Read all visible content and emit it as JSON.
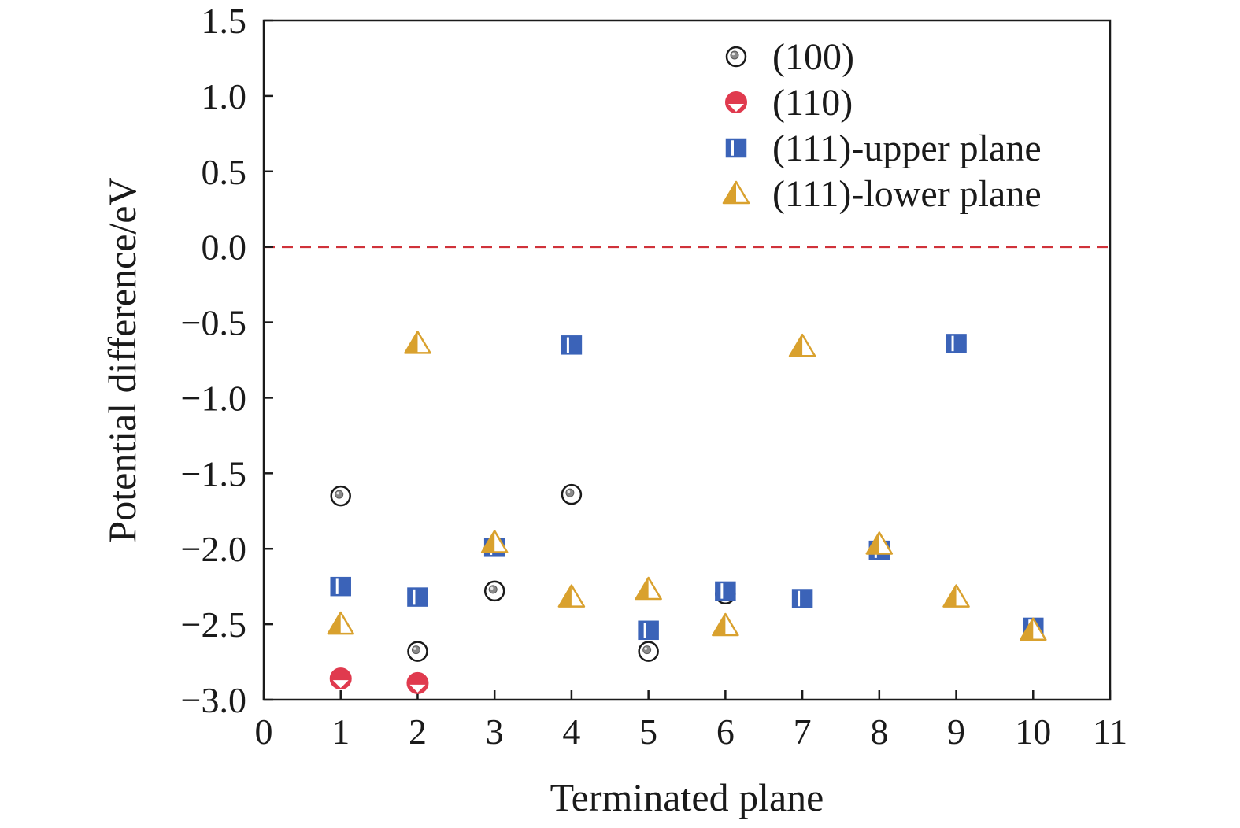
{
  "chart_data": {
    "type": "scatter",
    "xlabel": "Terminated plane",
    "ylabel": "Potential difference/eV",
    "xlim": [
      0,
      11
    ],
    "ylim": [
      -3.0,
      1.5
    ],
    "x_ticks": [
      "0",
      "1",
      "2",
      "3",
      "4",
      "5",
      "6",
      "7",
      "8",
      "9",
      "10",
      "11"
    ],
    "y_ticks": [
      "1.5",
      "1.0",
      "0.5",
      "0.0",
      "−0.5",
      "−1.0",
      "−1.5",
      "−2.0",
      "−2.5",
      "−3.0"
    ],
    "reference_line": {
      "y": 0.0,
      "style": "dashed",
      "color": "#d0323a"
    },
    "grid": false,
    "legend_position": "top-right",
    "series": [
      {
        "name": "(100)",
        "marker": "circle-dot",
        "color": "#1a1a1a",
        "points": [
          {
            "x": 1,
            "y": -1.65
          },
          {
            "x": 2,
            "y": -2.68
          },
          {
            "x": 3,
            "y": -2.28
          },
          {
            "x": 4,
            "y": -1.64
          },
          {
            "x": 5,
            "y": -2.68
          },
          {
            "x": 6,
            "y": -2.3
          }
        ]
      },
      {
        "name": "(110)",
        "marker": "circle-half",
        "color": "#e03a4e",
        "points": [
          {
            "x": 1,
            "y": -2.86
          },
          {
            "x": 2,
            "y": -2.89
          }
        ]
      },
      {
        "name": "(111)-upper plane",
        "marker": "square-half",
        "color": "#3b63b8",
        "points": [
          {
            "x": 1,
            "y": -2.25
          },
          {
            "x": 2,
            "y": -2.32
          },
          {
            "x": 3,
            "y": -1.99
          },
          {
            "x": 4,
            "y": -0.65
          },
          {
            "x": 5,
            "y": -2.54
          },
          {
            "x": 6,
            "y": -2.28
          },
          {
            "x": 7,
            "y": -2.33
          },
          {
            "x": 8,
            "y": -2.01
          },
          {
            "x": 9,
            "y": -0.64
          },
          {
            "x": 10,
            "y": -2.52
          }
        ]
      },
      {
        "name": "(111)-lower plane",
        "marker": "triangle-half",
        "color": "#d9a12e",
        "points": [
          {
            "x": 1,
            "y": -2.5
          },
          {
            "x": 2,
            "y": -0.64
          },
          {
            "x": 3,
            "y": -1.96
          },
          {
            "x": 4,
            "y": -2.32
          },
          {
            "x": 5,
            "y": -2.27
          },
          {
            "x": 6,
            "y": -2.51
          },
          {
            "x": 7,
            "y": -0.66
          },
          {
            "x": 8,
            "y": -1.97
          },
          {
            "x": 9,
            "y": -2.32
          },
          {
            "x": 10,
            "y": -2.54
          }
        ]
      }
    ]
  }
}
